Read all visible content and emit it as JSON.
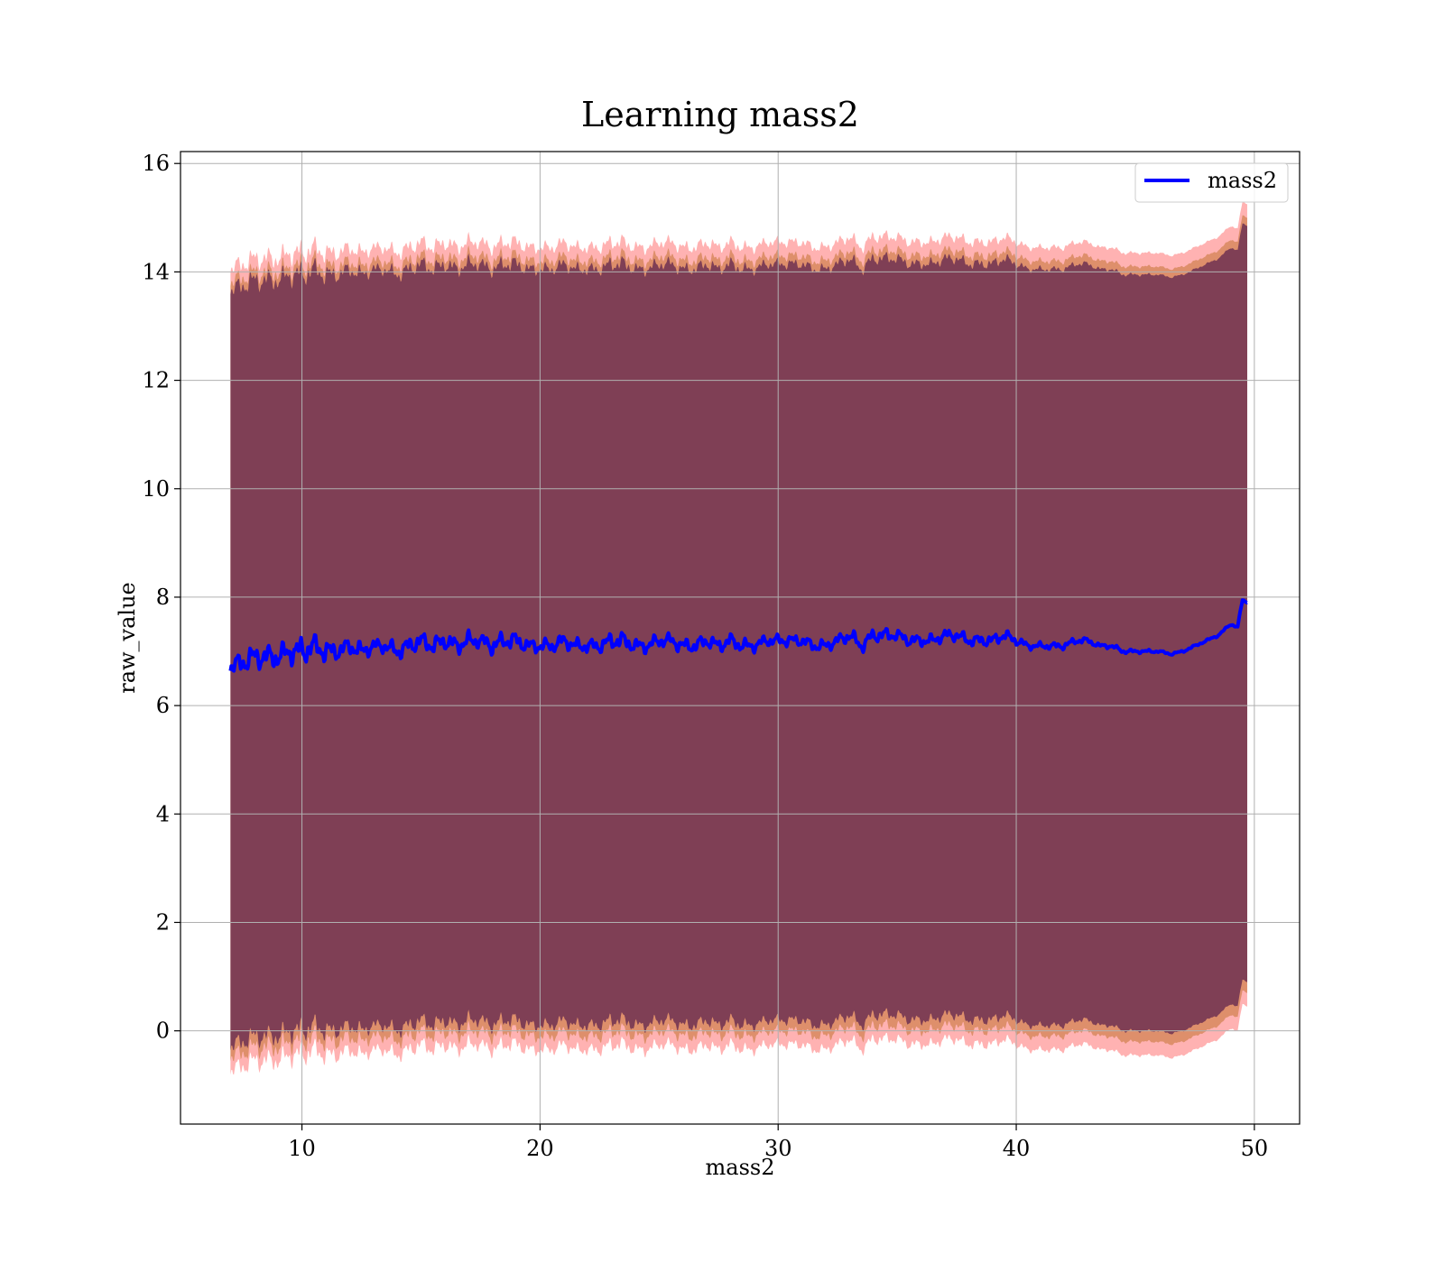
{
  "chart_data": {
    "type": "line",
    "title": "Learning mass2",
    "xlabel": "mass2",
    "ylabel": "raw_value",
    "xlim": [
      4.9,
      51.9
    ],
    "ylim": [
      -1.72,
      16.22
    ],
    "xticks": [
      10,
      20,
      30,
      40,
      50
    ],
    "yticks": [
      0,
      2,
      4,
      6,
      8,
      10,
      12,
      14,
      16
    ],
    "grid": true,
    "legend": {
      "position": "upper right",
      "entries": [
        "mass2"
      ]
    },
    "colors": {
      "line": "#0000ff",
      "band_inner": "#7f3f55",
      "band_middle": "#c8783c",
      "band_outer": "#ff7f7f",
      "grid": "#b0b0b0"
    },
    "series": [
      {
        "name": "mass2",
        "x": [
          7.0,
          7.5,
          8.0,
          8.5,
          9.0,
          9.5,
          10.0,
          10.5,
          11.0,
          11.5,
          12.0,
          12.5,
          13.0,
          13.5,
          14.0,
          14.5,
          15.0,
          15.5,
          16.0,
          16.5,
          17.0,
          17.5,
          18.0,
          18.5,
          19.0,
          19.5,
          20.0,
          20.5,
          21.0,
          21.5,
          22.0,
          22.5,
          23.0,
          23.5,
          24.0,
          24.5,
          25.0,
          25.5,
          26.0,
          26.5,
          27.0,
          27.5,
          28.0,
          28.5,
          29.0,
          29.5,
          30.0,
          30.5,
          31.0,
          31.5,
          32.0,
          32.5,
          33.0,
          33.5,
          34.0,
          34.5,
          35.0,
          35.5,
          36.0,
          36.5,
          37.0,
          37.5,
          38.0,
          38.5,
          39.0,
          39.5,
          40.0,
          40.5,
          41.0,
          41.5,
          42.0,
          42.5,
          43.0,
          43.5,
          44.0,
          44.5,
          45.0,
          45.5,
          46.0,
          46.5,
          47.0,
          47.5,
          48.0,
          48.5,
          49.0,
          49.3,
          49.5,
          49.7
        ],
        "y": [
          6.7,
          6.8,
          6.9,
          6.9,
          6.9,
          7.0,
          7.0,
          7.1,
          7.0,
          7.0,
          7.1,
          7.0,
          7.1,
          7.1,
          7.0,
          7.1,
          7.2,
          7.1,
          7.2,
          7.1,
          7.2,
          7.2,
          7.1,
          7.2,
          7.2,
          7.1,
          7.1,
          7.1,
          7.2,
          7.1,
          7.1,
          7.1,
          7.2,
          7.2,
          7.1,
          7.1,
          7.2,
          7.2,
          7.1,
          7.1,
          7.2,
          7.1,
          7.2,
          7.1,
          7.1,
          7.2,
          7.2,
          7.2,
          7.2,
          7.1,
          7.1,
          7.2,
          7.3,
          7.1,
          7.3,
          7.3,
          7.3,
          7.2,
          7.2,
          7.2,
          7.3,
          7.3,
          7.2,
          7.2,
          7.2,
          7.3,
          7.2,
          7.1,
          7.1,
          7.1,
          7.1,
          7.2,
          7.2,
          7.1,
          7.1,
          7.0,
          7.0,
          7.0,
          7.0,
          6.95,
          7.0,
          7.1,
          7.2,
          7.3,
          7.5,
          7.45,
          7.95,
          7.9
        ],
        "noise": [
          0.15,
          0.2,
          0.2,
          0.2,
          0.2,
          0.2,
          0.25,
          0.2,
          0.2,
          0.15,
          0.15,
          0.15,
          0.12,
          0.12,
          0.15,
          0.15,
          0.15,
          0.15,
          0.15,
          0.15,
          0.15,
          0.12,
          0.15,
          0.15,
          0.15,
          0.12,
          0.12,
          0.12,
          0.12,
          0.12,
          0.12,
          0.12,
          0.15,
          0.15,
          0.12,
          0.12,
          0.12,
          0.12,
          0.12,
          0.12,
          0.12,
          0.12,
          0.12,
          0.12,
          0.1,
          0.1,
          0.1,
          0.1,
          0.1,
          0.1,
          0.1,
          0.1,
          0.12,
          0.12,
          0.12,
          0.12,
          0.1,
          0.1,
          0.1,
          0.1,
          0.1,
          0.1,
          0.1,
          0.1,
          0.1,
          0.1,
          0.08,
          0.06,
          0.06,
          0.06,
          0.06,
          0.06,
          0.05,
          0.04,
          0.04,
          0.04,
          0.03,
          0.03,
          0.02,
          0.02,
          0.02,
          0.02,
          0.02,
          0.02,
          0.02,
          0.02,
          0.02,
          0.02
        ],
        "bands": [
          {
            "lower": -7.0,
            "upper": 6.95
          },
          {
            "lower": -7.2,
            "upper": 7.1
          },
          {
            "lower": -7.45,
            "upper": 7.35
          }
        ]
      }
    ]
  }
}
